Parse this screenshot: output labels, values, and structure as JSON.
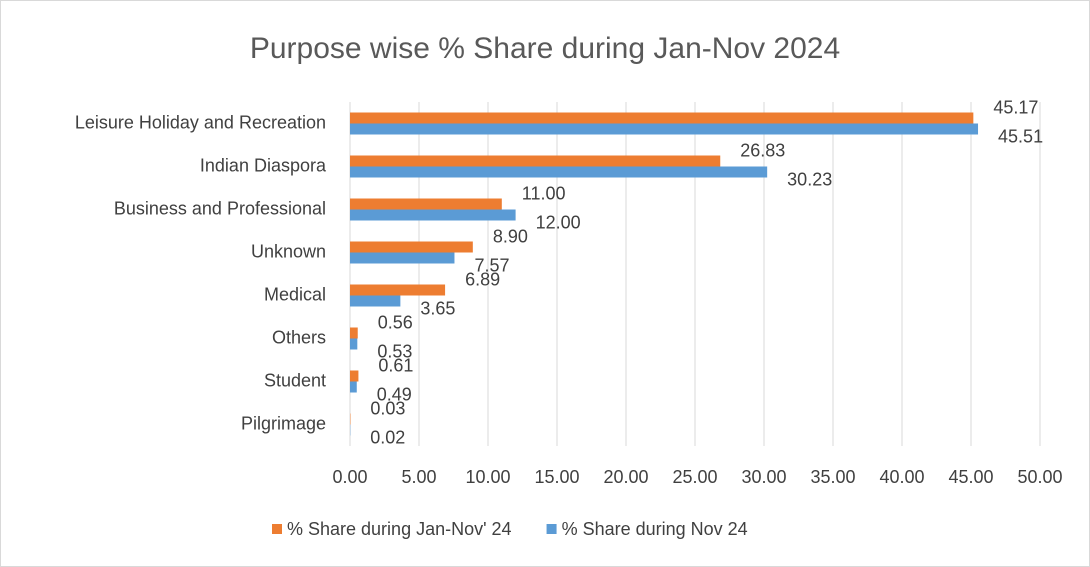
{
  "chart_data": {
    "type": "bar",
    "orientation": "horizontal",
    "title": "Purpose wise % Share during Jan-Nov 2024",
    "categories": [
      "Leisure Holiday and Recreation",
      "Indian Diaspora",
      "Business and Professional",
      "Unknown",
      "Medical",
      "Others",
      "Student",
      "Pilgrimage"
    ],
    "series": [
      {
        "name": "% Share during Jan-Nov' 24",
        "color": "#ed7d31",
        "values": [
          45.17,
          26.83,
          11.0,
          8.9,
          6.89,
          0.56,
          0.61,
          0.03
        ],
        "value_labels": [
          "45.17",
          "26.83",
          "11.00",
          "8.90",
          "6.89",
          "0.56",
          "0.61",
          "0.03"
        ]
      },
      {
        "name": "% Share during Nov 24",
        "color": "#5b9bd5",
        "values": [
          45.51,
          30.23,
          12.0,
          7.57,
          3.65,
          0.53,
          0.49,
          0.02
        ],
        "value_labels": [
          "45.51",
          "30.23",
          "12.00",
          "7.57",
          "3.65",
          "0.53",
          "0.49",
          "0.02"
        ]
      }
    ],
    "xlim": [
      0,
      50
    ],
    "xticks": [
      {
        "value": 0,
        "label": "0.00"
      },
      {
        "value": 5,
        "label": "5.00"
      },
      {
        "value": 10,
        "label": "10.00"
      },
      {
        "value": 15,
        "label": "15.00"
      },
      {
        "value": 20,
        "label": "20.00"
      },
      {
        "value": 25,
        "label": "25.00"
      },
      {
        "value": 30,
        "label": "30.00"
      },
      {
        "value": 35,
        "label": "35.00"
      },
      {
        "value": 40,
        "label": "40.00"
      },
      {
        "value": 45,
        "label": "45.00"
      },
      {
        "value": 50,
        "label": "50.00"
      }
    ],
    "grid": true,
    "legend": "bottom"
  }
}
